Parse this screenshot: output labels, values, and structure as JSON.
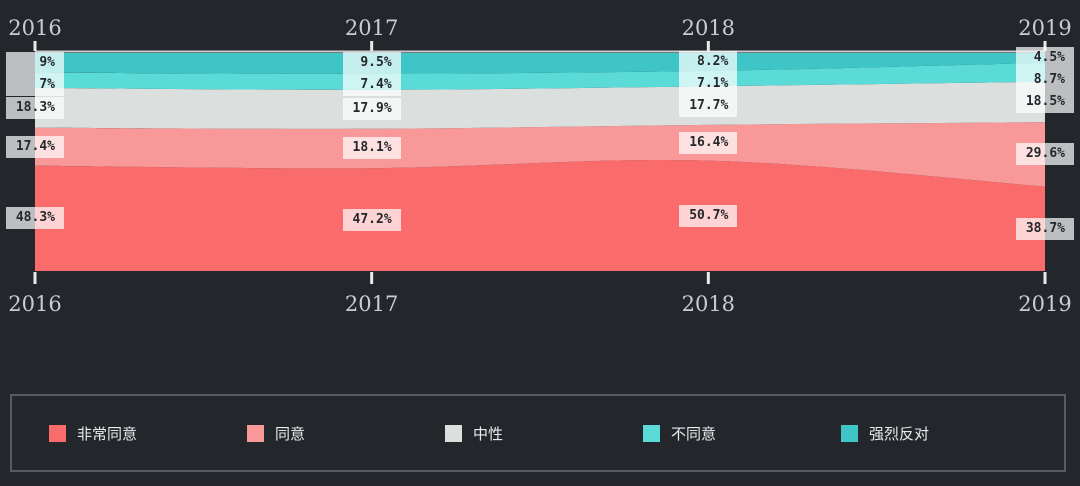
{
  "background": "#23262b",
  "chart_data": {
    "type": "area",
    "stacked": true,
    "percent_stacked": true,
    "x_labels": [
      "2016",
      "2017",
      "2018",
      "2019"
    ],
    "x_axis_shown": "top and bottom",
    "ylim": [
      0,
      100
    ],
    "unit": "%",
    "grid": false,
    "legend_position": "bottom",
    "stack_order": "bottom-to-top",
    "series": [
      {
        "name": "非常同意",
        "color": "#fa6b6b",
        "values": [
          48.3,
          47.2,
          50.7,
          38.7
        ],
        "labels": [
          "48.3%",
          "47.2%",
          "50.7%",
          "38.7%"
        ]
      },
      {
        "name": "同意",
        "color": "#f99898",
        "values": [
          17.4,
          18.1,
          16.4,
          29.6
        ],
        "labels": [
          "17.4%",
          "18.1%",
          "16.4%",
          "29.6%"
        ]
      },
      {
        "name": "中性",
        "color": "#dbdfde",
        "values": [
          18.3,
          17.9,
          17.7,
          18.5
        ],
        "labels": [
          "18.3%",
          "17.9%",
          "17.7%",
          "18.5%"
        ]
      },
      {
        "name": "不同意",
        "color": "#5bdbd7",
        "values": [
          7.0,
          7.4,
          7.1,
          8.7
        ],
        "labels": [
          "7%",
          "7.4%",
          "7.1%",
          "8.7%"
        ]
      },
      {
        "name": "强烈反对",
        "color": "#3fc5c6",
        "values": [
          9.0,
          9.5,
          8.2,
          4.5
        ],
        "labels": [
          "9%",
          "9.5%",
          "8.2%",
          "4.5%"
        ]
      }
    ]
  },
  "styles": {
    "label_box_bg": "rgba(255,255,255,0.70)",
    "label_text_color": "#24272b",
    "axis_text_color": "#c9ccd0",
    "tick_color": "#e8eaea",
    "top_line_color": "#c9cdcf",
    "legend_border_color": "#575b61",
    "legend_text_color": "#e9ebec"
  }
}
